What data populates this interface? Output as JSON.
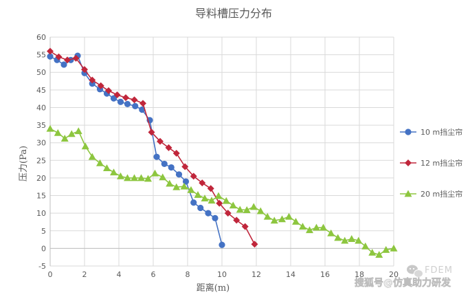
{
  "chart_data": {
    "type": "line",
    "title": "导料槽压力分布",
    "xlabel": "距离(m)",
    "ylabel": "压力(Pa)",
    "xlim": [
      0,
      20
    ],
    "ylim": [
      -5,
      60
    ],
    "x_ticks": [
      0,
      2,
      4,
      6,
      8,
      10,
      12,
      14,
      16,
      18,
      20
    ],
    "y_ticks": [
      -5,
      0,
      5,
      10,
      15,
      20,
      25,
      30,
      35,
      40,
      45,
      50,
      55,
      60
    ],
    "grid": true,
    "legend_position": "right",
    "series": [
      {
        "name": "10 m挡尘帘",
        "color": "#4472C4",
        "marker": "circle",
        "x": [
          0,
          0.4,
          0.8,
          1.2,
          1.6,
          2.0,
          2.45,
          2.9,
          3.3,
          3.7,
          4.1,
          4.5,
          4.95,
          5.35,
          5.8,
          6.2,
          6.65,
          7.05,
          7.5,
          7.9,
          8.35,
          8.75,
          9.2,
          9.6,
          10.0
        ],
        "y": [
          54.5,
          53.5,
          52.2,
          53.5,
          54.7,
          49.8,
          46.8,
          45.2,
          44.0,
          42.6,
          41.6,
          41.0,
          40.4,
          39.4,
          36.4,
          26.0,
          24.0,
          23.0,
          21.0,
          19.0,
          13.0,
          11.5,
          10.0,
          8.6,
          1.0
        ]
      },
      {
        "name": "12 m挡尘帘",
        "color": "#C0263B",
        "marker": "diamond",
        "x": [
          0,
          0.5,
          1.0,
          1.5,
          2.0,
          2.45,
          2.95,
          3.4,
          3.9,
          4.4,
          4.9,
          5.4,
          5.9,
          6.4,
          6.9,
          7.35,
          7.85,
          8.35,
          8.85,
          9.35,
          9.85,
          10.35,
          10.85,
          11.35,
          11.9
        ],
        "y": [
          56.0,
          54.4,
          53.5,
          54.0,
          50.8,
          47.8,
          46.2,
          44.8,
          43.6,
          42.8,
          42.2,
          41.2,
          33.0,
          30.4,
          28.6,
          27.0,
          23.2,
          20.5,
          18.6,
          17.0,
          12.8,
          10.0,
          8.0,
          6.2,
          1.2
        ]
      },
      {
        "name": "20 m挡尘帘",
        "color": "#8DC63F",
        "marker": "triangle",
        "x": [
          0,
          0.45,
          0.85,
          1.25,
          1.65,
          2.05,
          2.45,
          2.9,
          3.3,
          3.7,
          4.1,
          4.5,
          4.9,
          5.3,
          5.7,
          6.1,
          6.55,
          6.95,
          7.35,
          7.8,
          8.2,
          8.6,
          9.0,
          9.4,
          9.8,
          10.25,
          10.65,
          11.05,
          11.45,
          11.85,
          12.25,
          12.65,
          13.05,
          13.5,
          13.9,
          14.3,
          14.7,
          15.1,
          15.5,
          15.9,
          16.35,
          16.75,
          17.15,
          17.55,
          17.95,
          18.35,
          18.75,
          19.15,
          19.55,
          20.0
        ],
        "y": [
          34.0,
          32.8,
          31.2,
          32.5,
          33.3,
          29.0,
          26.0,
          24.2,
          22.8,
          21.6,
          20.5,
          20.0,
          20.0,
          20.0,
          19.8,
          21.3,
          20.2,
          18.4,
          17.4,
          17.6,
          16.6,
          15.2,
          14.2,
          13.6,
          14.9,
          13.5,
          12.2,
          11.0,
          10.9,
          11.8,
          10.6,
          9.0,
          7.9,
          8.3,
          9.0,
          7.6,
          6.2,
          5.2,
          5.9,
          5.9,
          4.3,
          3.0,
          2.2,
          2.7,
          2.2,
          0.6,
          -1.2,
          -1.8,
          -0.4,
          0
        ]
      }
    ]
  },
  "watermark": {
    "brand": "FDEM",
    "line": "搜狐号@仿真助力研发"
  }
}
